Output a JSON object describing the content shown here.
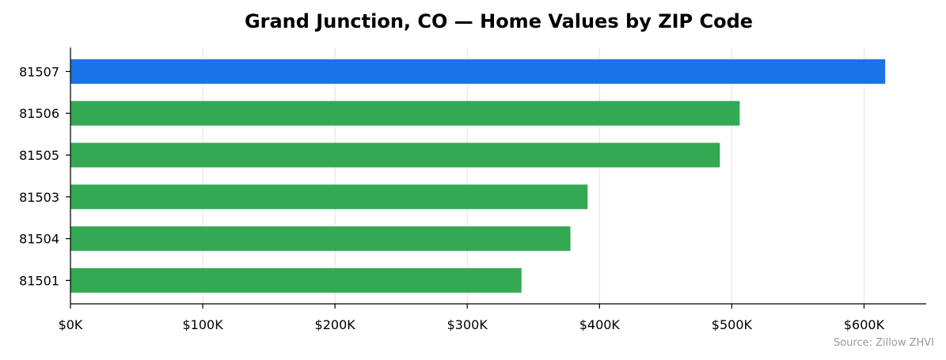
{
  "chart_data": {
    "type": "bar",
    "orientation": "horizontal",
    "title": "Grand Junction, CO — Home Values by ZIP Code",
    "xlabel": "",
    "ylabel": "",
    "categories": [
      "81507",
      "81506",
      "81505",
      "81503",
      "81504",
      "81501"
    ],
    "values": [
      616000,
      506000,
      491000,
      391000,
      378000,
      341000
    ],
    "highlight_index": 0,
    "colors": {
      "highlight": "#1a73e8",
      "default": "#34a853"
    },
    "xlim": [
      0,
      647000
    ],
    "xticks": [
      0,
      100000,
      200000,
      300000,
      400000,
      500000,
      600000
    ],
    "xtick_labels": [
      "$0K",
      "$100K",
      "$200K",
      "$300K",
      "$400K",
      "$500K",
      "$600K"
    ],
    "grid": "x",
    "legend": "none",
    "source": "Source: Zillow ZHVI"
  }
}
